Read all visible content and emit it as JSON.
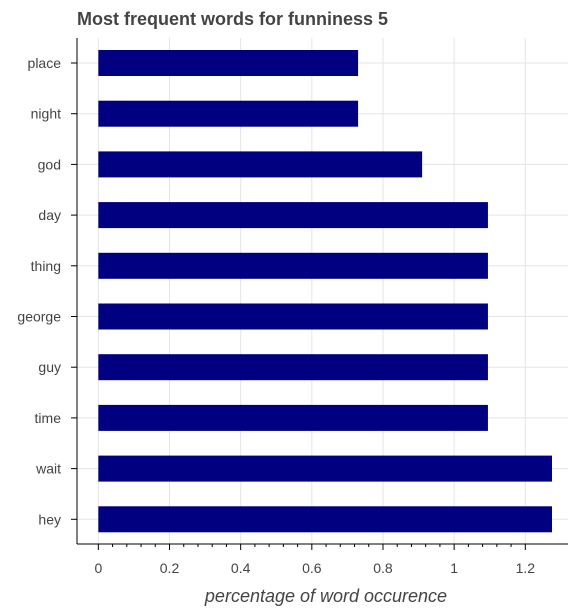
{
  "chart_data": {
    "type": "bar",
    "orientation": "horizontal",
    "title": "Most frequent words for funniness 5",
    "xlabel": "percentage of word occurence",
    "ylabel": "",
    "categories": [
      "place",
      "night",
      "god",
      "day",
      "thing",
      "george",
      "guy",
      "time",
      "wait",
      "hey"
    ],
    "values": [
      0.73,
      0.73,
      0.91,
      1.095,
      1.095,
      1.095,
      1.095,
      1.095,
      1.275,
      1.275
    ],
    "xlim": [
      -0.06,
      1.32
    ],
    "xticks": [
      0,
      0.2,
      0.4,
      0.6,
      0.8,
      1,
      1.2
    ],
    "xtick_labels": [
      "0",
      "0.2",
      "0.4",
      "0.6",
      "0.8",
      "1",
      "1.2"
    ],
    "grid": true,
    "legend": "none",
    "colors": {
      "bar": "#000080",
      "grid": "#e5e5e5",
      "text": "#444444",
      "axis": "#000000"
    }
  }
}
